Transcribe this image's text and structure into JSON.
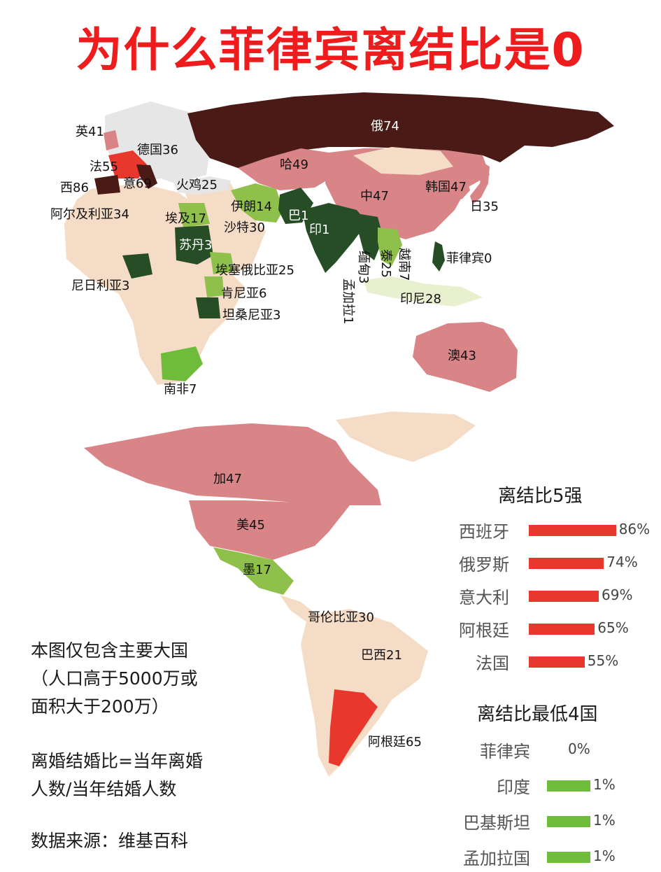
{
  "title": "为什么菲律宾离结比是0",
  "colors": {
    "dark": "#4a1a16",
    "pink": "#d98486",
    "red": "#e8382e",
    "beige": "#f5dcc6",
    "dark_green": "#274d26",
    "light_green": "#8fc04b",
    "green": "#6fbb3a",
    "grey": "#e6e6e6"
  },
  "map_labels": [
    {
      "id": "uk",
      "text": "英41"
    },
    {
      "id": "germany",
      "text": "德国36"
    },
    {
      "id": "france",
      "text": "法55"
    },
    {
      "id": "spain",
      "text": "西86"
    },
    {
      "id": "italy",
      "text": "意69"
    },
    {
      "id": "turkey",
      "text": "火鸡25"
    },
    {
      "id": "algeria",
      "text": "阿尔及利亚34"
    },
    {
      "id": "egypt",
      "text": "埃及17"
    },
    {
      "id": "sudan",
      "text": "苏丹3"
    },
    {
      "id": "iran",
      "text": "伊朗14"
    },
    {
      "id": "saudi",
      "text": "沙特30"
    },
    {
      "id": "pakistan",
      "text": "巴1"
    },
    {
      "id": "india",
      "text": "印1"
    },
    {
      "id": "russia",
      "text": "俄74"
    },
    {
      "id": "kazakhstan",
      "text": "哈49"
    },
    {
      "id": "china",
      "text": "中47"
    },
    {
      "id": "korea",
      "text": "韩国47"
    },
    {
      "id": "japan",
      "text": "日35"
    },
    {
      "id": "philippines",
      "text": "菲律宾0"
    },
    {
      "id": "bangladesh",
      "text": "孟加拉1"
    },
    {
      "id": "myanmar",
      "text": "缅甸3"
    },
    {
      "id": "thailand",
      "text": "泰25"
    },
    {
      "id": "vietnam",
      "text": "越南7"
    },
    {
      "id": "indonesia",
      "text": "印尼28"
    },
    {
      "id": "nigeria",
      "text": "尼日利亚3"
    },
    {
      "id": "ethiopia",
      "text": "埃塞俄比亚25"
    },
    {
      "id": "kenya",
      "text": "肯尼亚6"
    },
    {
      "id": "tanzania",
      "text": "坦桑尼亚3"
    },
    {
      "id": "south_africa",
      "text": "南非7"
    },
    {
      "id": "australia",
      "text": "澳43"
    },
    {
      "id": "canada",
      "text": "加47"
    },
    {
      "id": "usa",
      "text": "美45"
    },
    {
      "id": "mexico",
      "text": "墨17"
    },
    {
      "id": "colombia",
      "text": "哥伦比亚30"
    },
    {
      "id": "brazil",
      "text": "巴西21"
    },
    {
      "id": "argentina",
      "text": "阿根廷65"
    }
  ],
  "notes": {
    "scope_line1": "本图仅包含主要大国",
    "scope_line2": "（人口高于5000万或",
    "scope_line3": "面积大于200万）",
    "def_line1": "离婚结婚比=当年离婚",
    "def_line2": "人数/当年结婚人数",
    "source": "数据来源：维基百科"
  },
  "top5": {
    "title": "离结比5强",
    "items": [
      {
        "name": "西班牙",
        "value": 86,
        "label": "86%"
      },
      {
        "name": "俄罗斯",
        "value": 74,
        "label": "74%"
      },
      {
        "name": "意大利",
        "value": 69,
        "label": "69%"
      },
      {
        "name": "阿根廷",
        "value": 65,
        "label": "65%"
      },
      {
        "name": "法国",
        "value": 55,
        "label": "55%"
      }
    ]
  },
  "bottom4": {
    "title": "离结比最低4国",
    "items": [
      {
        "name": "菲律宾",
        "value": 0,
        "label": "0%"
      },
      {
        "name": "印度",
        "value": 1,
        "label": "1%"
      },
      {
        "name": "巴基斯坦",
        "value": 1,
        "label": "1%"
      },
      {
        "name": "孟加拉国",
        "value": 1,
        "label": "1%"
      }
    ]
  }
}
